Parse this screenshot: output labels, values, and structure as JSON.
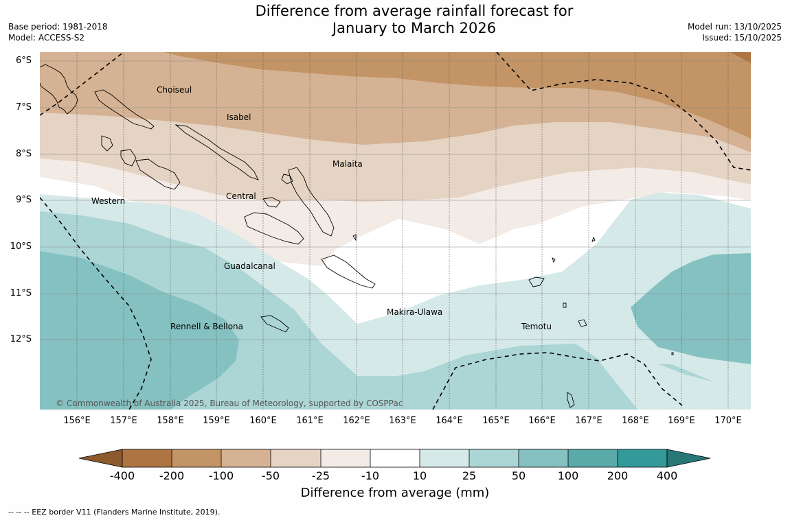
{
  "title": {
    "line1": "Difference from average rainfall forecast for",
    "line2": "January to March 2026"
  },
  "meta_left": {
    "base_period": "Base period: 1981-2018",
    "model": "Model: ACCESS-S2"
  },
  "meta_right": {
    "model_run": "Model run: 13/10/2025",
    "issued": "Issued: 15/10/2025"
  },
  "map": {
    "lat_labels": [
      "6°S",
      "7°S",
      "8°S",
      "9°S",
      "10°S",
      "11°S",
      "12°S"
    ],
    "lon_labels": [
      "156°E",
      "157°E",
      "158°E",
      "159°E",
      "160°E",
      "161°E",
      "162°E",
      "163°E",
      "164°E",
      "165°E",
      "166°E",
      "167°E",
      "168°E",
      "169°E",
      "170°E"
    ],
    "regions": {
      "choiseul": "Choiseul",
      "isabel": "Isabel",
      "malaita": "Malaita",
      "central": "Central",
      "western": "Western",
      "guadalcanal": "Guadalcanal",
      "makira": "Makira-Ulawa",
      "rennell": "Rennell & Bellona",
      "temotu": "Temotu"
    },
    "copyright": "© Commonwealth of Australia 2025, Bureau of Meteorology, supported by COSPPac"
  },
  "colorbar": {
    "labels": [
      "-400",
      "-200",
      "-100",
      "-50",
      "-25",
      "-10",
      "10",
      "25",
      "50",
      "100",
      "200",
      "400"
    ],
    "colors": {
      "lt_neg400": "#8c5a2c",
      "n400_200": "#ae7542",
      "n200_100": "#c39465",
      "n100_50": "#d4b293",
      "n50_25": "#e5d3c3",
      "n25_10": "#f3ebe5",
      "n10_10": "#ffffff",
      "p10_25": "#d5e9e9",
      "p25_50": "#acd5d5",
      "p50_100": "#85c1c1",
      "p100_200": "#5baaaa",
      "p200_400": "#339999",
      "gt_400": "#277777"
    },
    "title": "Difference from average (mm)"
  },
  "footnote": "--  --  -- EEZ border V11 (Flanders Marine Institute, 2019)."
}
